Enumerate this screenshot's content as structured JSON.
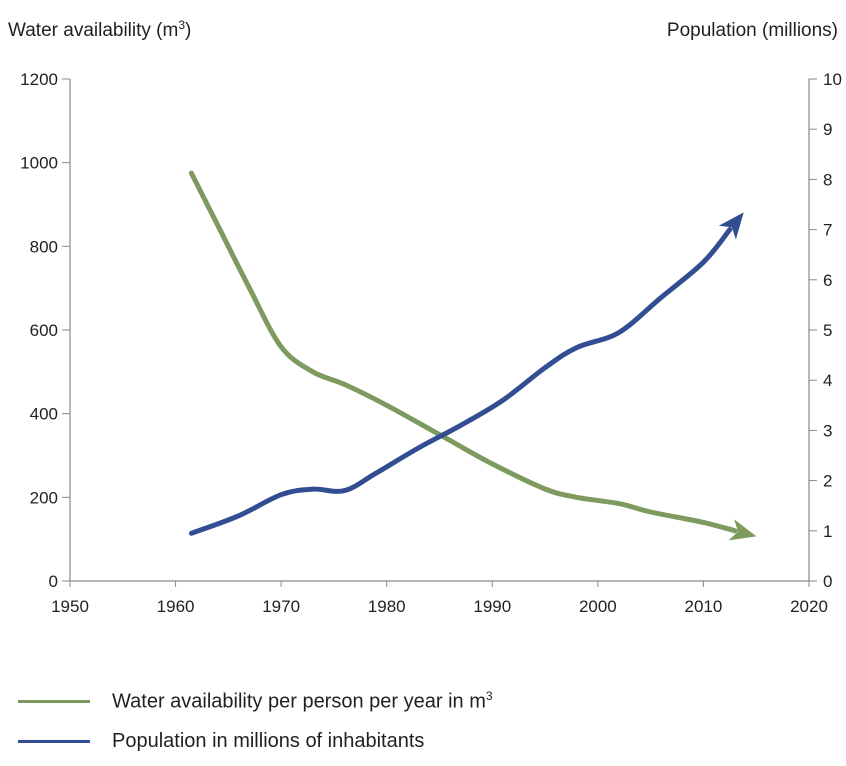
{
  "chart_data": {
    "type": "line",
    "left_axis_title": "Water availability (m",
    "left_axis_title_sup": "3",
    "left_axis_title_close": ")",
    "right_axis_title": "Population (millions)",
    "x_ticks": [
      1950,
      1960,
      1970,
      1980,
      1990,
      2000,
      2010,
      2020
    ],
    "xlim": [
      1950,
      2020
    ],
    "y_left_ticks": [
      0,
      200,
      400,
      600,
      800,
      1000,
      1200
    ],
    "ylim_left": [
      0,
      1200
    ],
    "y_right_ticks": [
      0,
      1,
      2,
      3,
      4,
      5,
      6,
      7,
      8,
      9,
      10
    ],
    "ylim_right": [
      0,
      10
    ],
    "series": [
      {
        "name": "Water availability per person per year in m",
        "name_sup": "3",
        "axis": "left",
        "color": "#7d9a5f",
        "x": [
          1961.5,
          1964,
          1967,
          1970,
          1973,
          1976,
          1980,
          1985,
          1990,
          1995,
          1998,
          2002,
          2005,
          2010,
          2013
        ],
        "y": [
          975,
          850,
          700,
          560,
          500,
          470,
          420,
          350,
          280,
          220,
          200,
          185,
          165,
          140,
          120
        ]
      },
      {
        "name": "Population in millions of inhabitants",
        "axis": "right",
        "color": "#324d92",
        "x": [
          1961.5,
          1966,
          1970,
          1973,
          1976,
          1979,
          1983,
          1987,
          1991,
          1995,
          1998,
          2002,
          2006,
          2010,
          2012.5
        ],
        "y": [
          0.95,
          1.3,
          1.72,
          1.83,
          1.8,
          2.15,
          2.65,
          3.1,
          3.6,
          4.25,
          4.65,
          4.95,
          5.65,
          6.35,
          7.0
        ]
      }
    ]
  }
}
